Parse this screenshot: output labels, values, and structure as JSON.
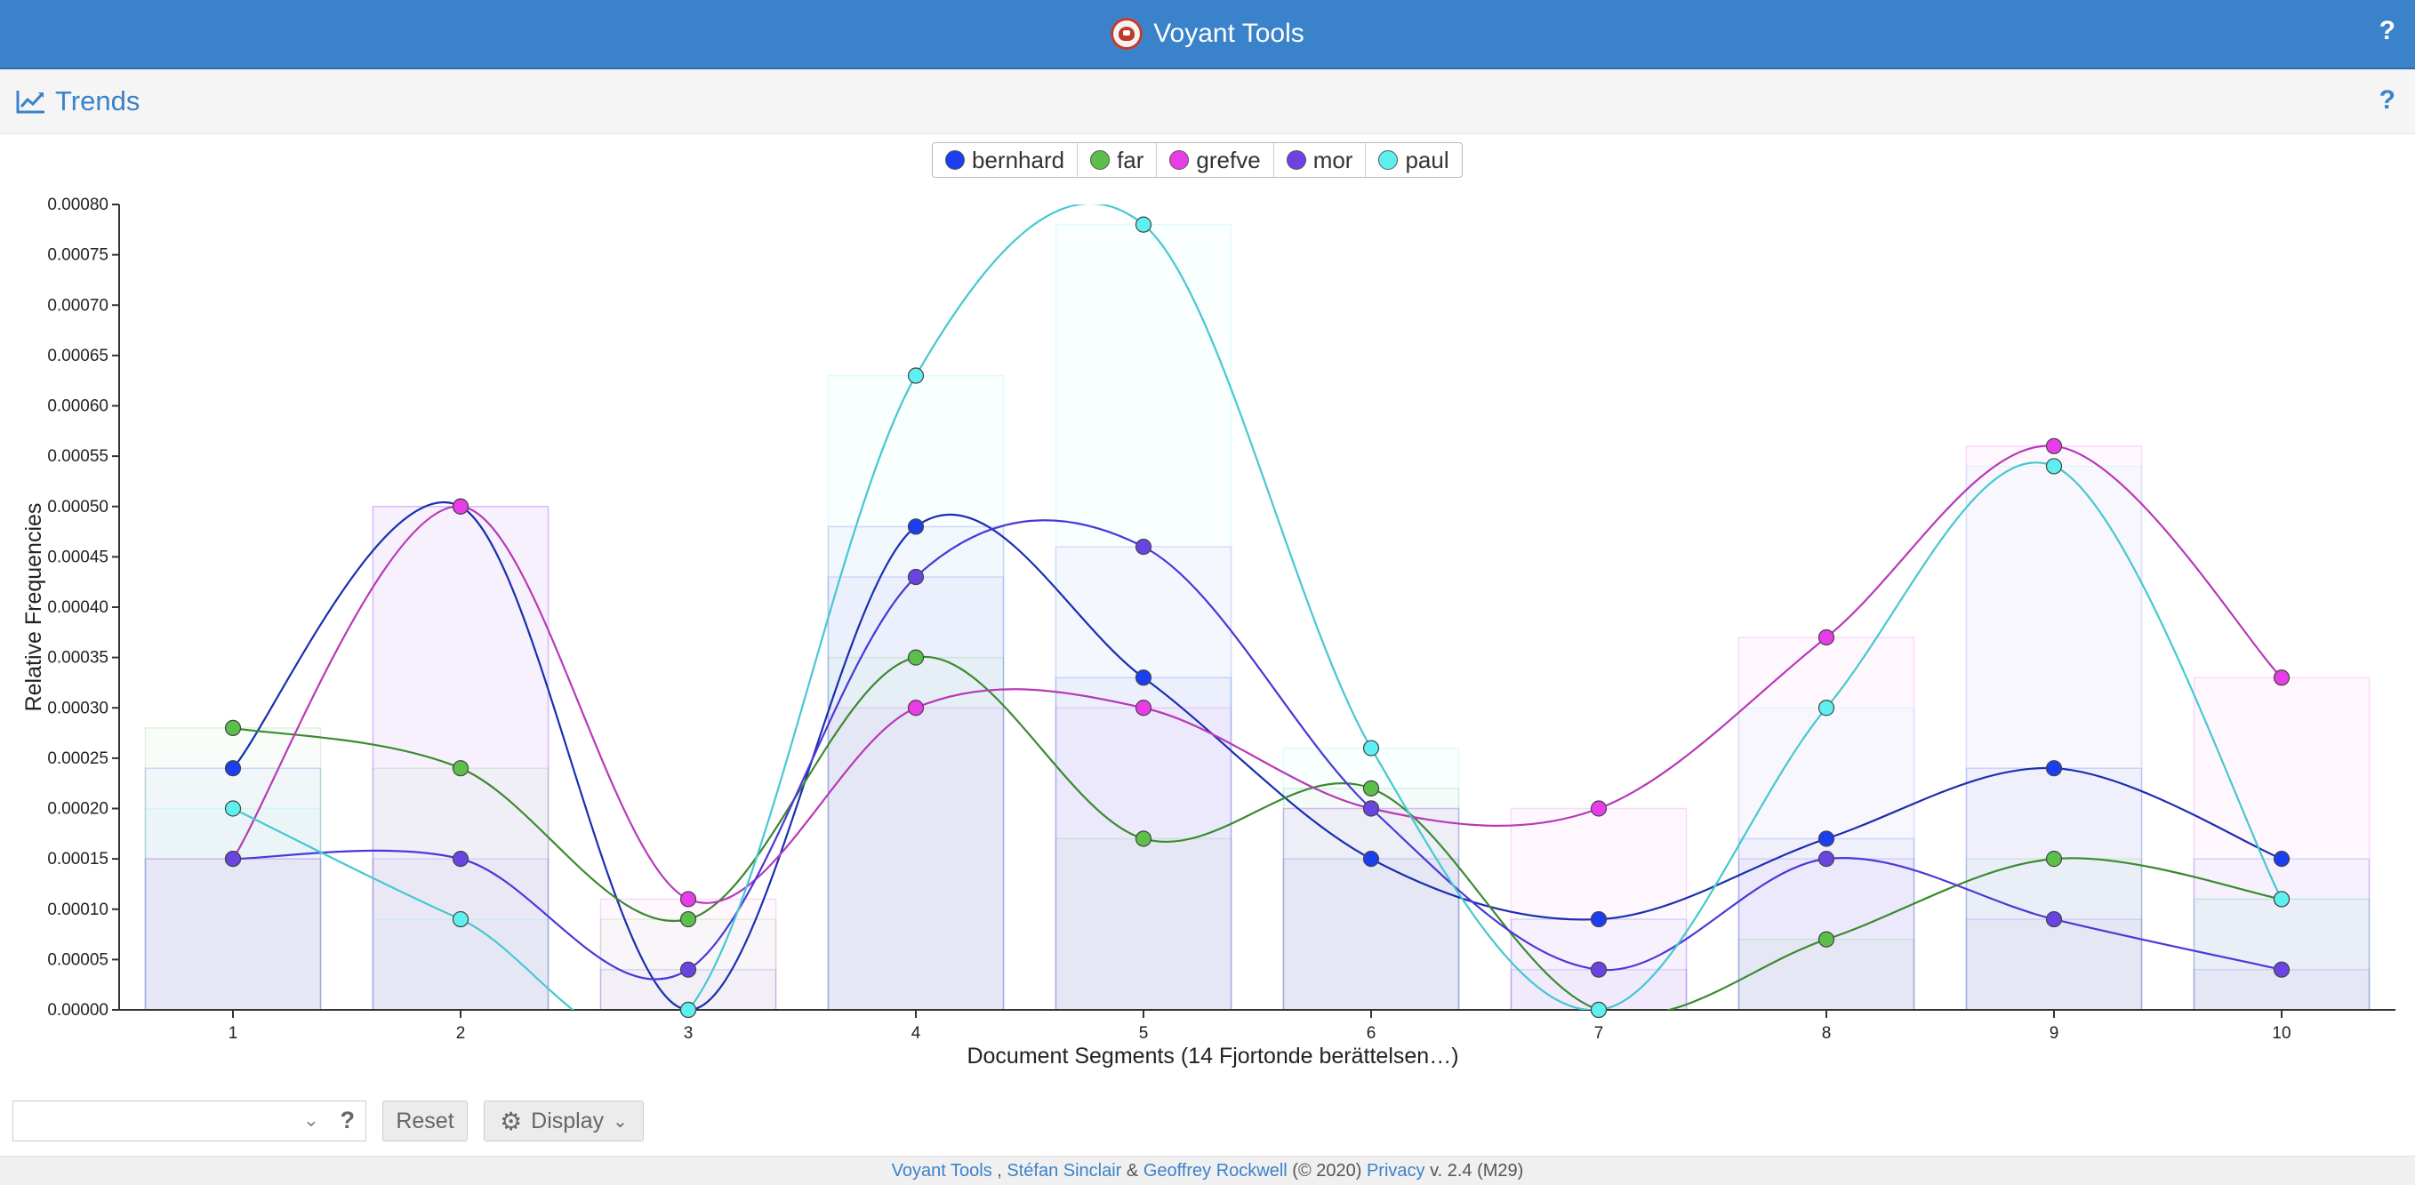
{
  "app": {
    "title": "Voyant Tools",
    "help": "?"
  },
  "panel": {
    "title": "Trends",
    "help": "?"
  },
  "legend": [
    {
      "label": "bernhard",
      "color": "#1a3ff0"
    },
    {
      "label": "far",
      "color": "#5cbf4a"
    },
    {
      "label": "grefve",
      "color": "#e83ce8"
    },
    {
      "label": "mor",
      "color": "#6a44e0"
    },
    {
      "label": "paul",
      "color": "#5ef0f0"
    }
  ],
  "chart_data": {
    "type": "line",
    "xlabel": "Document Segments (14 Fjortonde berättelsen…)",
    "ylabel": "Relative Frequencies",
    "categories": [
      "1",
      "2",
      "3",
      "4",
      "5",
      "6",
      "7",
      "8",
      "9",
      "10"
    ],
    "ylim": [
      0,
      0.0008
    ],
    "yticks": [
      "0.00000",
      "0.00005",
      "0.00010",
      "0.00015",
      "0.00020",
      "0.00025",
      "0.00030",
      "0.00035",
      "0.00040",
      "0.00045",
      "0.00050",
      "0.00055",
      "0.00060",
      "0.00065",
      "0.00070",
      "0.00075",
      "0.00080"
    ],
    "series": [
      {
        "name": "bernhard",
        "color": "#1a3ff0",
        "line": "#1b2fb0",
        "values": [
          0.00024,
          0.0005,
          0.0,
          0.00048,
          0.00033,
          0.00015,
          9e-05,
          0.00017,
          0.00024,
          0.00015
        ]
      },
      {
        "name": "far",
        "color": "#5cbf4a",
        "line": "#3b8a2e",
        "values": [
          0.00028,
          0.00024,
          9e-05,
          0.00035,
          0.00017,
          0.00022,
          0.0,
          7e-05,
          0.00015,
          0.00011
        ]
      },
      {
        "name": "grefve",
        "color": "#e83ce8",
        "line": "#b83ab8",
        "values": [
          0.00015,
          0.0005,
          0.00011,
          0.0003,
          0.0003,
          0.0002,
          0.0002,
          0.00037,
          0.00056,
          0.00033
        ]
      },
      {
        "name": "mor",
        "color": "#6a44e0",
        "line": "#4b38d8",
        "values": [
          0.00015,
          0.00015,
          4e-05,
          0.00043,
          0.00046,
          0.0002,
          4e-05,
          0.00015,
          9e-05,
          4e-05
        ]
      },
      {
        "name": "paul",
        "color": "#5ef0f0",
        "line": "#46c8d0",
        "values": [
          0.0002,
          9e-05,
          0.0,
          0.00063,
          0.00078,
          0.00026,
          0.0,
          0.0003,
          0.00054,
          0.00011
        ]
      }
    ]
  },
  "toolbar": {
    "combo_help": "?",
    "reset": "Reset",
    "display": "Display"
  },
  "footer": {
    "app_link": "Voyant Tools",
    "sep1": " , ",
    "author1": "Stéfan Sinclair",
    "amp": " & ",
    "author2": "Geoffrey Rockwell",
    "copyright": " (© 2020) ",
    "privacy": "Privacy",
    "version": " v. 2.4 (M29)"
  }
}
